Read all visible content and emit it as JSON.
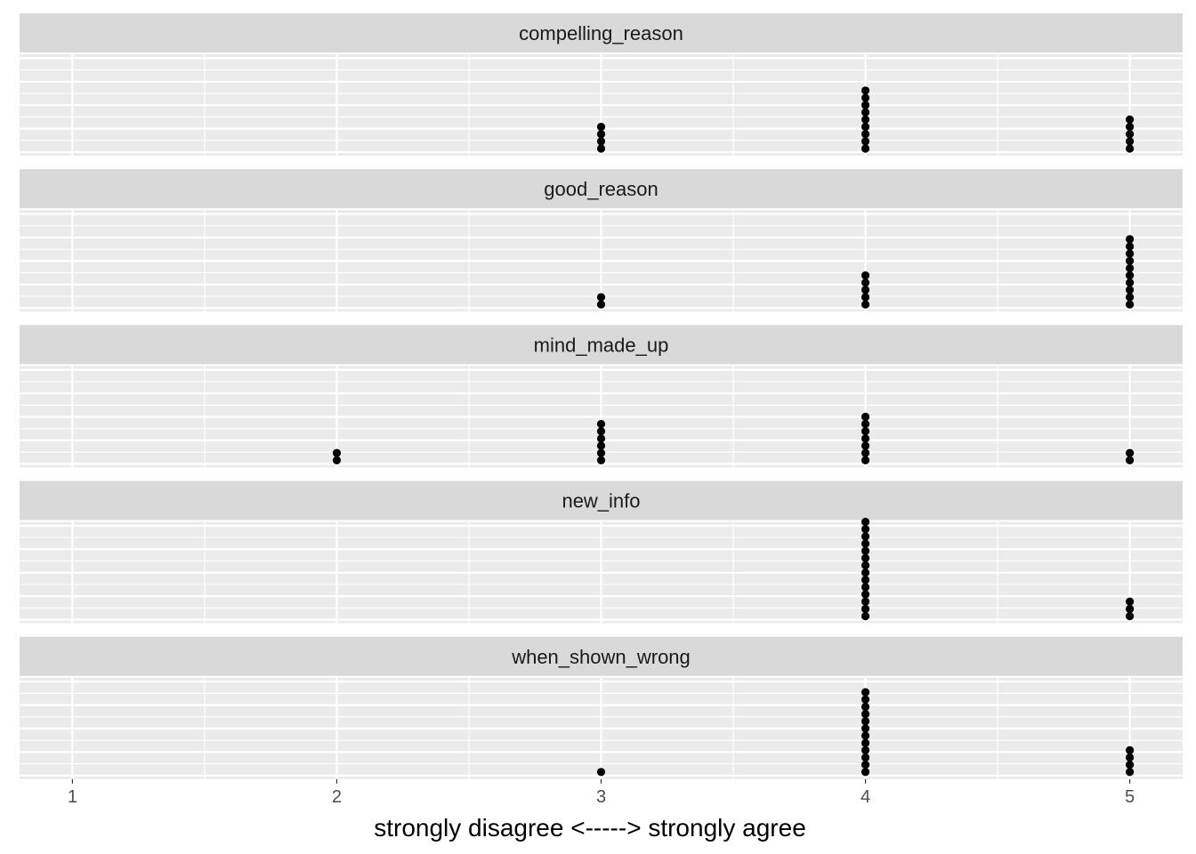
{
  "chart_data": {
    "type": "scatter",
    "subtype": "faceted dot plot (stacked dots)",
    "xlabel": "strongly disagree <-----> strongly agree",
    "x_ticks": [
      1,
      2,
      3,
      4,
      5
    ],
    "xlim": [
      0.8,
      5.2
    ],
    "grid": true,
    "facets": [
      {
        "name": "compelling_reason",
        "counts": {
          "1": 0,
          "2": 0,
          "3": 4,
          "4": 9,
          "5": 5
        }
      },
      {
        "name": "good_reason",
        "counts": {
          "1": 0,
          "2": 0,
          "3": 2,
          "4": 5,
          "5": 10
        }
      },
      {
        "name": "mind_made_up",
        "counts": {
          "1": 0,
          "2": 2,
          "3": 6,
          "4": 7,
          "5": 2
        }
      },
      {
        "name": "new_info",
        "counts": {
          "1": 0,
          "2": 0,
          "3": 0,
          "4": 14,
          "5": 3
        }
      },
      {
        "name": "when_shown_wrong",
        "counts": {
          "1": 0,
          "2": 0,
          "3": 1,
          "4": 12,
          "5": 4
        }
      }
    ]
  },
  "colors": {
    "panel_bg": "#ebebeb",
    "strip_bg": "#d9d9d9",
    "grid_major": "#ffffff",
    "point": "#000000"
  }
}
